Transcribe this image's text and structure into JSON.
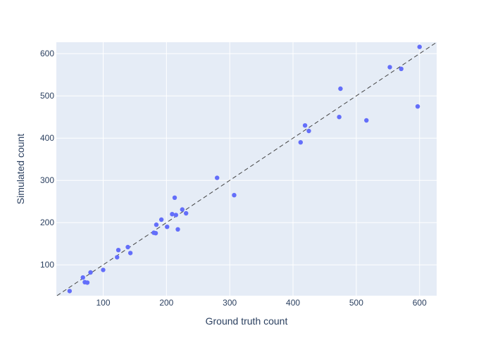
{
  "chart_data": {
    "type": "scatter",
    "xlabel": "Ground truth count",
    "ylabel": "Simulated count",
    "xlim": [
      26,
      627
    ],
    "ylim": [
      27,
      627
    ],
    "x_ticks": [
      100,
      200,
      300,
      400,
      500,
      600
    ],
    "y_ticks": [
      100,
      200,
      300,
      400,
      500,
      600
    ],
    "grid": true,
    "reference_line": {
      "style": "dashed",
      "description": "y = x",
      "color": "#444444"
    },
    "colors": {
      "plot_background": "#e5ecf6",
      "grid": "#ffffff",
      "marker": "#636efa",
      "text": "#2a3f5f"
    },
    "series": [
      {
        "points": [
          {
            "x": 47,
            "y": 38
          },
          {
            "x": 68,
            "y": 70
          },
          {
            "x": 71,
            "y": 59
          },
          {
            "x": 75,
            "y": 58
          },
          {
            "x": 80,
            "y": 82
          },
          {
            "x": 100,
            "y": 88
          },
          {
            "x": 122,
            "y": 118
          },
          {
            "x": 124,
            "y": 135
          },
          {
            "x": 139,
            "y": 142
          },
          {
            "x": 143,
            "y": 128
          },
          {
            "x": 180,
            "y": 176
          },
          {
            "x": 183,
            "y": 175
          },
          {
            "x": 184,
            "y": 195
          },
          {
            "x": 192,
            "y": 207
          },
          {
            "x": 201,
            "y": 190
          },
          {
            "x": 209,
            "y": 220
          },
          {
            "x": 213,
            "y": 259
          },
          {
            "x": 215,
            "y": 218
          },
          {
            "x": 218,
            "y": 184
          },
          {
            "x": 225,
            "y": 231
          },
          {
            "x": 231,
            "y": 222
          },
          {
            "x": 280,
            "y": 306
          },
          {
            "x": 307,
            "y": 265
          },
          {
            "x": 412,
            "y": 390
          },
          {
            "x": 419,
            "y": 430
          },
          {
            "x": 425,
            "y": 417
          },
          {
            "x": 473,
            "y": 450
          },
          {
            "x": 475,
            "y": 517
          },
          {
            "x": 516,
            "y": 442
          },
          {
            "x": 553,
            "y": 568
          },
          {
            "x": 571,
            "y": 564
          },
          {
            "x": 597,
            "y": 475
          },
          {
            "x": 600,
            "y": 616
          }
        ]
      }
    ]
  }
}
